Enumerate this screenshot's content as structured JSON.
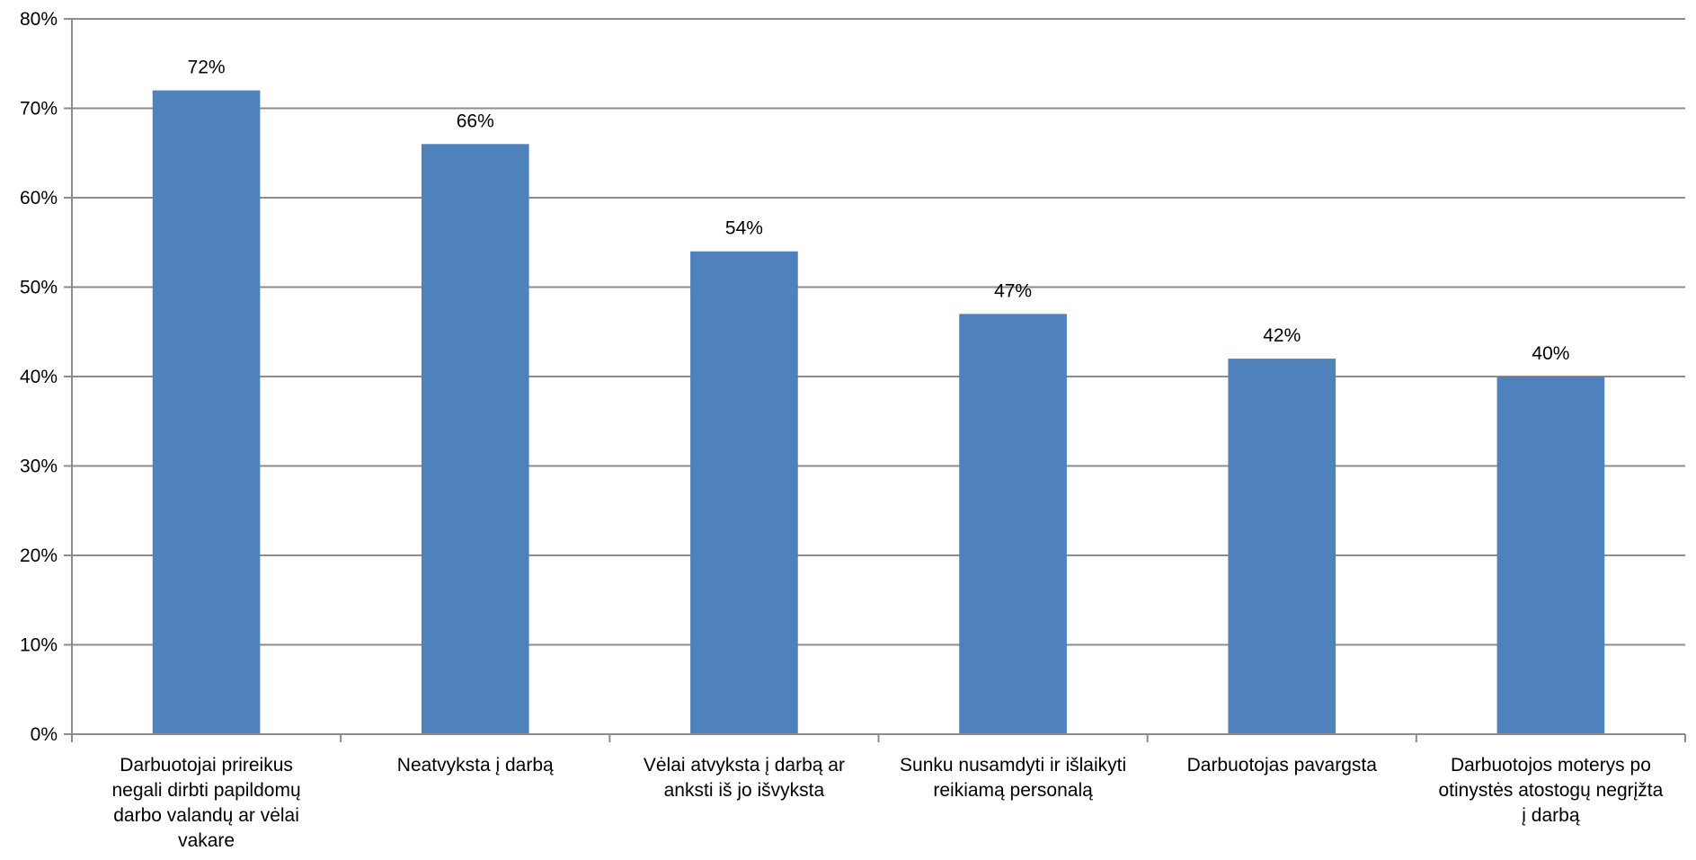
{
  "chart_data": {
    "type": "bar",
    "categories": [
      "Darbuotojai prireikus negali dirbti papildomų darbo valandų ar vėlai vakare",
      "Neatvyksta į darbą",
      "Vėlai atvyksta į darbą ar anksti iš jo išvyksta",
      "Sunku nusamdyti ir išlaikyti reikiamą personalą",
      "Darbuotojas pavargsta",
      "Darbuotojos moterys po otinystės atostogų negrįžta į darbą"
    ],
    "category_lines": [
      [
        "Darbuotojai prireikus",
        "negali dirbti papildomų",
        "darbo valandų ar vėlai",
        "vakare"
      ],
      [
        "Neatvyksta į darbą"
      ],
      [
        "Vėlai atvyksta į darbą ar",
        "anksti iš jo išvyksta"
      ],
      [
        "Sunku nusamdyti ir išlaikyti",
        "reikiamą personalą"
      ],
      [
        "Darbuotojas pavargsta"
      ],
      [
        "Darbuotojos moterys po",
        "otinystės atostogų negrįžta",
        "į darbą"
      ]
    ],
    "values": [
      72,
      66,
      54,
      47,
      42,
      40
    ],
    "data_labels": [
      "72%",
      "66%",
      "54%",
      "47%",
      "42%",
      "40%"
    ],
    "y_ticks": [
      "0%",
      "10%",
      "20%",
      "30%",
      "40%",
      "50%",
      "60%",
      "70%",
      "80%"
    ],
    "ylim": [
      0,
      80
    ],
    "grid": true,
    "legend": "none",
    "bar_color": "#4F81BD",
    "grid_color": "#8C8C8C",
    "axis_color": "#8C8C8C"
  }
}
